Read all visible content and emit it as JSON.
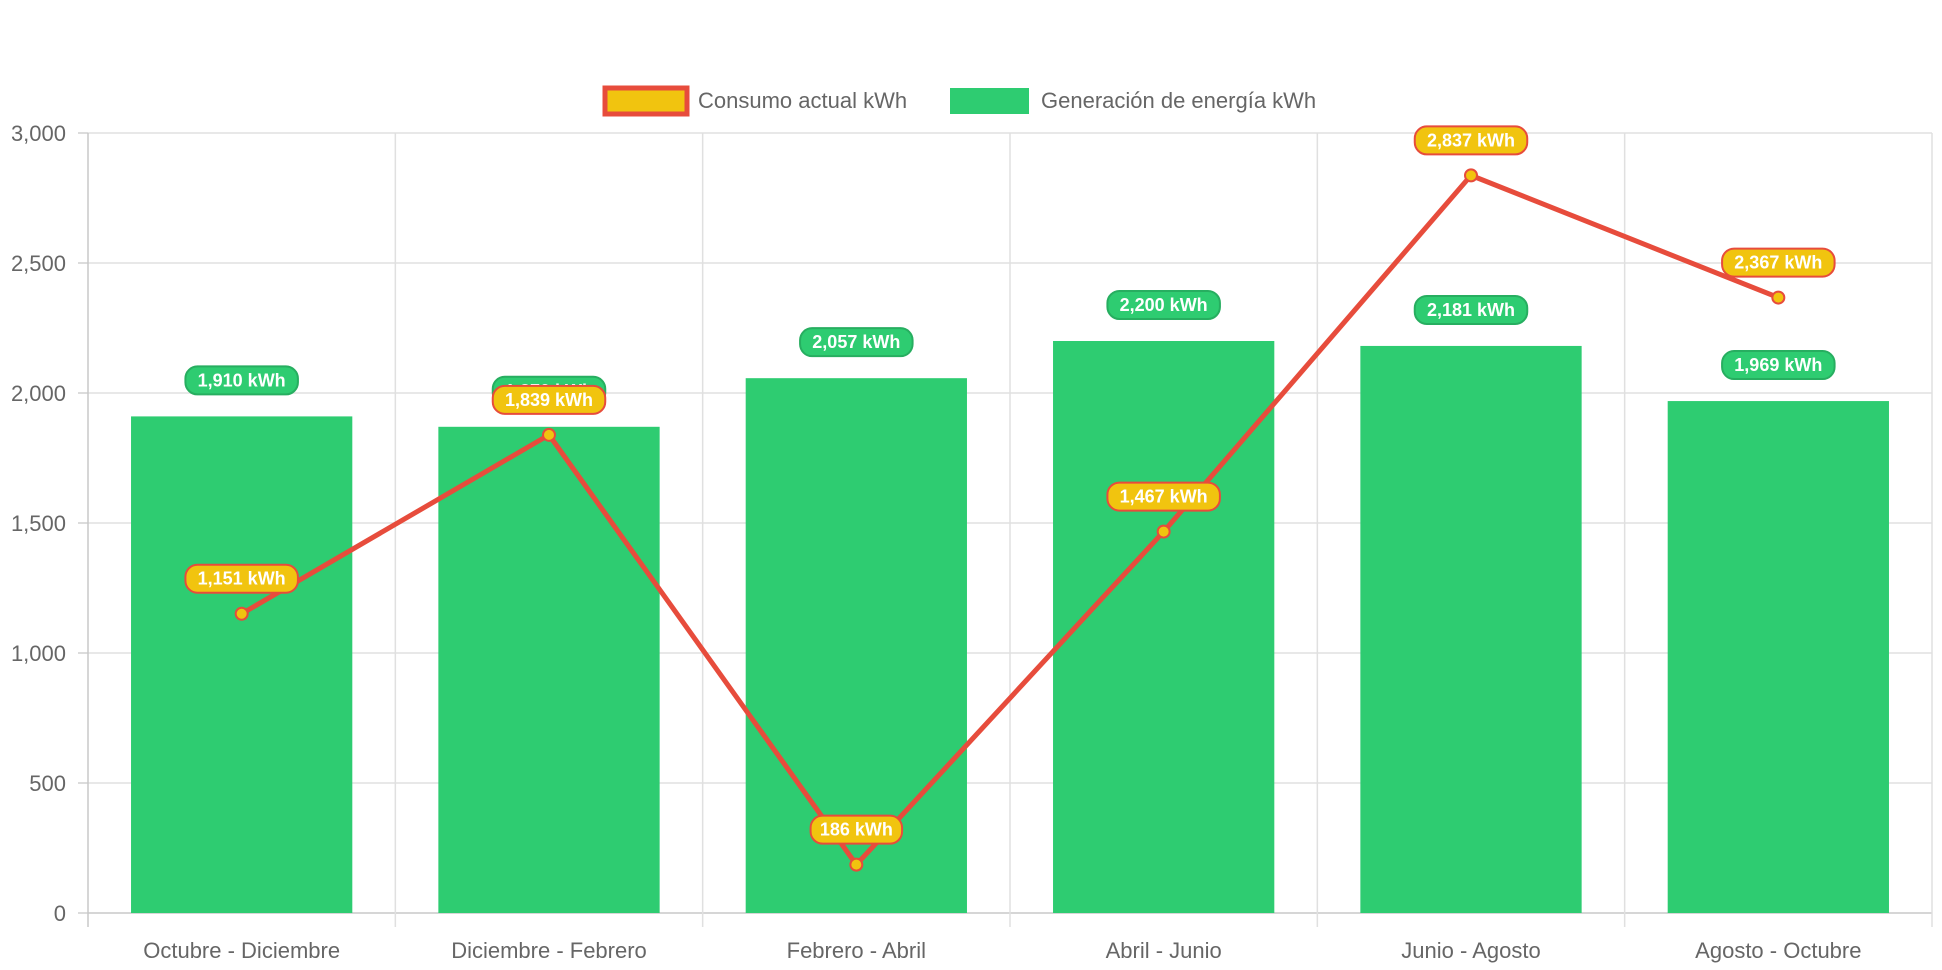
{
  "chart_data": {
    "type": "bar",
    "categories": [
      "Octubre - Diciembre",
      "Diciembre - Febrero",
      "Febrero - Abril",
      "Abril - Junio",
      "Junio - Agosto",
      "Agosto - Octubre"
    ],
    "ylim": [
      0,
      3000
    ],
    "yticks": [
      0,
      500,
      1000,
      1500,
      2000,
      2500,
      3000
    ],
    "ytick_labels": [
      "0",
      "500",
      "1,000",
      "1,500",
      "2,000",
      "2,500",
      "3,000"
    ],
    "grid": true,
    "legend_position": "top-center",
    "series": [
      {
        "name": "Consumo actual kWh",
        "type": "line",
        "values": [
          1151,
          1839,
          186,
          1467,
          2837,
          2367
        ],
        "labels": [
          "1,151 kWh",
          "1,839 kWh",
          "186 kWh",
          "1,467 kWh",
          "2,837 kWh",
          "2,367 kWh"
        ],
        "line_color": "#e74c3c",
        "point_color": "#f1c40f"
      },
      {
        "name": "Generación de energía kWh",
        "type": "bar",
        "values": [
          1910,
          1870,
          2057,
          2200,
          2181,
          1969
        ],
        "labels": [
          "1,910 kWh",
          "1,870 kWh",
          "2,057 kWh",
          "2,200 kWh",
          "2,181 kWh",
          "1,969 kWh"
        ],
        "color": "#2ecc71"
      }
    ]
  }
}
